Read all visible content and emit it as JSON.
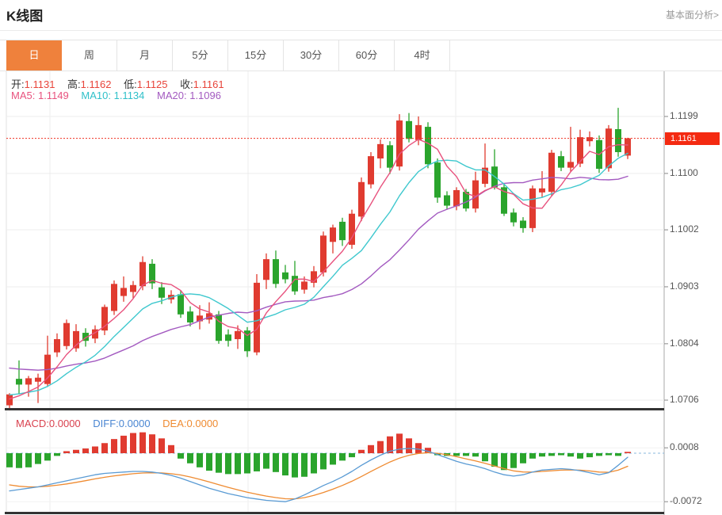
{
  "header": {
    "title": "K线图",
    "link": "基本面分析>"
  },
  "tabs": {
    "active_index": 0,
    "items": [
      "日",
      "周",
      "月",
      "5分",
      "15分",
      "30分",
      "60分",
      "4时"
    ]
  },
  "ohlc_legend": [
    {
      "label": "开:",
      "value": "1.1131"
    },
    {
      "label": "高:",
      "value": "1.1162"
    },
    {
      "label": "低:",
      "value": "1.1125"
    },
    {
      "label": "收:",
      "value": "1.1161"
    }
  ],
  "ma_legend": [
    {
      "label": "MA5:",
      "value": "1.1149",
      "color": "#e8527e"
    },
    {
      "label": "MA10:",
      "value": "1.1134",
      "color": "#2fc0c9"
    },
    {
      "label": "MA20:",
      "value": "1.1096",
      "color": "#a35ac0"
    }
  ],
  "macd_legend": [
    {
      "label": "MACD:",
      "value": "0.0000",
      "color": "#d9414e"
    },
    {
      "label": "DIFF:",
      "value": "0.0000",
      "color": "#4a86d2"
    },
    {
      "label": "DEA:",
      "value": "0.0000",
      "color": "#ef8b31"
    }
  ],
  "colors": {
    "up": "#e03b30",
    "down": "#2aa42c",
    "ma5": "#e8527e",
    "ma10": "#3fc8ce",
    "ma20": "#a35ac0",
    "diff": "#5a9bd4",
    "dea": "#ef8b31",
    "tab_active": "#ef813c",
    "price_line": "#f03222",
    "badge_bg": "#f42a11",
    "grid": "#ededed",
    "axis": "#a8a8a8",
    "zero_dash": "#8ab8dd"
  },
  "chart_data": {
    "type": "candlestick_with_macd",
    "title": "K线图",
    "period": "日",
    "price_axis": {
      "labels": [
        "1.1199",
        "1.1100",
        "1.1002",
        "1.0903",
        "1.0804",
        "1.0706"
      ],
      "values": [
        1.1199,
        1.11,
        1.1002,
        1.0903,
        1.0804,
        1.0706
      ]
    },
    "current_price": {
      "label": "1.1161",
      "value": 1.1161
    },
    "last_candle": {
      "open": 1.1131,
      "high": 1.1162,
      "low": 1.1125,
      "close": 1.1161
    },
    "ma_values": {
      "ma5": 1.1149,
      "ma10": 1.1134,
      "ma20": 1.1096
    },
    "ma_left_edge_seeds": {
      "ma5": 1.0706,
      "ma10": 1.0715,
      "ma20": 1.0764
    },
    "candles_ohlc": [
      [
        1.0697,
        1.0718,
        1.0688,
        1.0716
      ],
      [
        1.0743,
        1.0775,
        1.0716,
        1.0733
      ],
      [
        1.0733,
        1.0748,
        1.0712,
        1.0744
      ],
      [
        1.0738,
        1.0752,
        1.0701,
        1.0745
      ],
      [
        1.0734,
        1.0818,
        1.0729,
        1.0785
      ],
      [
        1.0789,
        1.0822,
        1.0781,
        1.0812
      ],
      [
        1.08,
        1.0846,
        1.0794,
        1.084
      ],
      [
        1.0796,
        1.0838,
        1.079,
        1.0826
      ],
      [
        1.0823,
        1.0831,
        1.0799,
        1.0809
      ],
      [
        1.0813,
        1.0836,
        1.0805,
        1.0829
      ],
      [
        1.0827,
        1.0872,
        1.0819,
        1.0868
      ],
      [
        1.0861,
        1.0914,
        1.0854,
        1.0908
      ],
      [
        1.0887,
        1.0921,
        1.0877,
        1.0901
      ],
      [
        1.0894,
        1.0913,
        1.0883,
        1.0906
      ],
      [
        1.0904,
        1.0956,
        1.0897,
        1.0946
      ],
      [
        1.0943,
        1.0951,
        1.0899,
        1.0909
      ],
      [
        1.0902,
        1.0911,
        1.0873,
        1.0884
      ],
      [
        1.0881,
        1.0897,
        1.0874,
        1.0889
      ],
      [
        1.089,
        1.0896,
        1.0849,
        1.0855
      ],
      [
        1.086,
        1.0869,
        1.0834,
        1.0841
      ],
      [
        1.0843,
        1.0871,
        1.0829,
        1.0853
      ],
      [
        1.0846,
        1.0876,
        1.0839,
        1.0857
      ],
      [
        1.0855,
        1.0861,
        1.0804,
        1.0809
      ],
      [
        1.082,
        1.0829,
        1.0799,
        1.0809
      ],
      [
        1.0812,
        1.0836,
        1.0795,
        1.0826
      ],
      [
        1.0827,
        1.0833,
        1.0781,
        1.0791
      ],
      [
        1.0789,
        1.0925,
        1.0784,
        1.091
      ],
      [
        1.0915,
        1.0961,
        1.0899,
        1.0951
      ],
      [
        1.0951,
        1.0966,
        1.0901,
        1.0908
      ],
      [
        1.0928,
        1.0941,
        1.0909,
        1.0916
      ],
      [
        1.0922,
        1.0948,
        1.0889,
        1.0895
      ],
      [
        1.0898,
        1.0921,
        1.0891,
        1.0912
      ],
      [
        1.091,
        1.0939,
        1.0902,
        1.093
      ],
      [
        1.0928,
        1.0999,
        1.0921,
        1.0992
      ],
      [
        1.0981,
        1.1011,
        1.0961,
        1.1006
      ],
      [
        1.1016,
        1.1023,
        1.0974,
        1.0984
      ],
      [
        1.0976,
        1.1037,
        1.0969,
        1.103
      ],
      [
        1.1025,
        1.1093,
        1.1017,
        1.1085
      ],
      [
        1.1081,
        1.1137,
        1.1074,
        1.113
      ],
      [
        1.1126,
        1.1159,
        1.1109,
        1.1151
      ],
      [
        1.1149,
        1.1156,
        1.1099,
        1.111
      ],
      [
        1.1112,
        1.1203,
        1.1105,
        1.1192
      ],
      [
        1.1191,
        1.1205,
        1.1154,
        1.116
      ],
      [
        1.1158,
        1.1199,
        1.1149,
        1.1184
      ],
      [
        1.1181,
        1.1189,
        1.1109,
        1.1116
      ],
      [
        1.1119,
        1.1126,
        1.1049,
        1.1058
      ],
      [
        1.1062,
        1.1069,
        1.1037,
        1.1044
      ],
      [
        1.1043,
        1.1076,
        1.1036,
        1.1071
      ],
      [
        1.1068,
        1.1073,
        1.1034,
        1.1039
      ],
      [
        1.1039,
        1.1103,
        1.1032,
        1.1088
      ],
      [
        1.1082,
        1.1152,
        1.1076,
        1.111
      ],
      [
        1.1112,
        1.1142,
        1.1072,
        1.1076
      ],
      [
        1.1076,
        1.1082,
        1.1026,
        1.103
      ],
      [
        1.1032,
        1.1039,
        1.1008,
        1.1015
      ],
      [
        1.1018,
        1.1024,
        1.0997,
        1.1005
      ],
      [
        1.1005,
        1.1079,
        1.0998,
        1.1074
      ],
      [
        1.1067,
        1.1104,
        1.1059,
        1.1074
      ],
      [
        1.1068,
        1.1141,
        1.1061,
        1.1136
      ],
      [
        1.113,
        1.1139,
        1.1104,
        1.111
      ],
      [
        1.111,
        1.1181,
        1.1103,
        1.112
      ],
      [
        1.1117,
        1.1176,
        1.1111,
        1.1163
      ],
      [
        1.1156,
        1.1173,
        1.1147,
        1.1163
      ],
      [
        1.1158,
        1.1166,
        1.1101,
        1.1108
      ],
      [
        1.1109,
        1.1184,
        1.1103,
        1.1178
      ],
      [
        1.1177,
        1.1214,
        1.1129,
        1.1137
      ],
      [
        1.1131,
        1.1162,
        1.1125,
        1.1161
      ]
    ],
    "macd": {
      "axis_labels": [
        "0.0008",
        "-0.0072"
      ],
      "axis_values": [
        0.0008,
        -0.0072
      ],
      "unit": "1e-4",
      "hist": [
        -21,
        -22,
        -21,
        -16,
        -11,
        -4,
        3,
        5,
        7,
        10,
        15,
        21,
        26,
        30,
        31,
        28,
        22,
        12,
        -8,
        -15,
        -21,
        -26,
        -29,
        -31,
        -31,
        -30,
        -27,
        -23,
        -28,
        -33,
        -36,
        -35,
        -30,
        -24,
        -17,
        -11,
        -6,
        5,
        12,
        18,
        25,
        29,
        22,
        15,
        8,
        -3,
        -4,
        -4,
        -4,
        -5,
        -12,
        -20,
        -25,
        -22,
        -15,
        -8,
        -5,
        -4,
        -3,
        -5,
        -8,
        -6,
        -4,
        -3,
        -4,
        2
      ],
      "diff": [
        -56,
        -54,
        -52,
        -50,
        -47,
        -44,
        -41,
        -38,
        -35,
        -32,
        -30,
        -29,
        -28,
        -27,
        -27,
        -28,
        -30,
        -33,
        -37,
        -42,
        -47,
        -52,
        -56,
        -60,
        -63,
        -66,
        -68,
        -70,
        -71,
        -72,
        -68,
        -62,
        -55,
        -48,
        -42,
        -35,
        -27,
        -18,
        -10,
        -3,
        3,
        6,
        7,
        6,
        3,
        -2,
        -7,
        -12,
        -16,
        -19,
        -23,
        -28,
        -32,
        -34,
        -32,
        -28,
        -25,
        -24,
        -23,
        -24,
        -26,
        -29,
        -32,
        -29,
        -18,
        -6
      ]
    }
  }
}
